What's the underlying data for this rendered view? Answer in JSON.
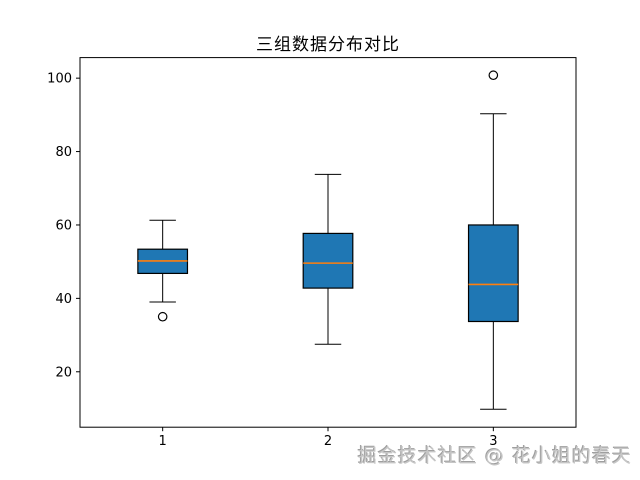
{
  "watermark": {
    "text": "掘金技术社区 @ 花小姐的春天"
  },
  "chart_data": {
    "type": "boxplot",
    "title": "三组数据分布对比",
    "xlabel": "",
    "ylabel": "",
    "categories": [
      "1",
      "2",
      "3"
    ],
    "x_positions": [
      1,
      2,
      3
    ],
    "xlim": [
      0.5,
      3.5
    ],
    "ylim": [
      4.9,
      105.6
    ],
    "yticks": [
      20,
      40,
      60,
      80,
      100
    ],
    "grid": false,
    "legend": "none",
    "box_width": 0.3,
    "cap_width": 0.16,
    "box_fill": "#1f77b4",
    "box_edge": "#000000",
    "whisker_color": "#000000",
    "median_color": "#ff7f0e",
    "series": [
      {
        "name": "1",
        "whisker_low": 39.0,
        "q1": 46.8,
        "median": 50.2,
        "q3": 53.4,
        "whisker_high": 61.3,
        "outliers": [
          35.0
        ]
      },
      {
        "name": "2",
        "whisker_low": 27.5,
        "q1": 42.8,
        "median": 49.6,
        "q3": 57.7,
        "whisker_high": 73.8,
        "outliers": []
      },
      {
        "name": "3",
        "whisker_low": 9.8,
        "q1": 33.7,
        "median": 43.8,
        "q3": 60.0,
        "whisker_high": 90.3,
        "outliers": [
          100.8
        ]
      }
    ]
  }
}
